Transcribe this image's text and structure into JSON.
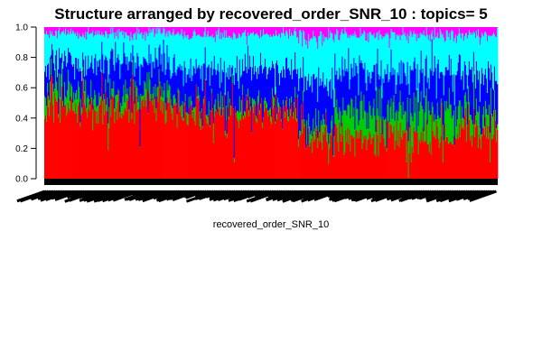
{
  "chart_data": {
    "type": "bar",
    "stacked": true,
    "title": "Structure arranged by recovered_order_SNR_10 : topics= 5",
    "xlabel": "recovered_order_SNR_10",
    "ylabel": "",
    "ylim": [
      0,
      1
    ],
    "y_ticks": [
      "0.0",
      "0.2",
      "0.4",
      "0.6",
      "0.8",
      "1.0"
    ],
    "grid": false,
    "legend": "none",
    "x_tick_labels": "dense overlapping sample labels (unreadable)",
    "segments": [
      {
        "name": "",
        "color": "#ff0000",
        "groups": [
          {
            "count": 70,
            "mean": 0.45,
            "sd": 0.1
          },
          {
            "count": 70,
            "mean": 0.46,
            "sd": 0.09
          },
          {
            "count": 80,
            "mean": 0.42,
            "sd": 0.09
          },
          {
            "count": 60,
            "mean": 0.42,
            "sd": 0.09
          },
          {
            "count": 40,
            "mean": 0.3,
            "sd": 0.12
          },
          {
            "count": 140,
            "mean": 0.26,
            "sd": 0.09
          },
          {
            "count": 40,
            "mean": 0.33,
            "sd": 0.1
          }
        ]
      },
      {
        "name": "",
        "color": "#00cd00",
        "groups": [
          {
            "count": 70,
            "mean": 0.1,
            "sd": 0.06
          },
          {
            "count": 70,
            "mean": 0.08,
            "sd": 0.05
          },
          {
            "count": 80,
            "mean": 0.05,
            "sd": 0.04
          },
          {
            "count": 60,
            "mean": 0.04,
            "sd": 0.03
          },
          {
            "count": 40,
            "mean": 0.07,
            "sd": 0.06
          },
          {
            "count": 140,
            "mean": 0.17,
            "sd": 0.08
          },
          {
            "count": 40,
            "mean": 0.1,
            "sd": 0.07
          }
        ]
      },
      {
        "name": "",
        "color": "#0000ff",
        "groups": [
          {
            "count": 70,
            "mean": 0.2,
            "sd": 0.07
          },
          {
            "count": 70,
            "mean": 0.2,
            "sd": 0.07
          },
          {
            "count": 80,
            "mean": 0.22,
            "sd": 0.07
          },
          {
            "count": 60,
            "mean": 0.24,
            "sd": 0.07
          },
          {
            "count": 40,
            "mean": 0.27,
            "sd": 0.08
          },
          {
            "count": 140,
            "mean": 0.25,
            "sd": 0.07
          },
          {
            "count": 40,
            "mean": 0.22,
            "sd": 0.07
          }
        ]
      },
      {
        "name": "",
        "color": "#00ffff",
        "groups": [
          {
            "count": 70,
            "mean": 0.18,
            "sd": 0.06
          },
          {
            "count": 70,
            "mean": 0.19,
            "sd": 0.06
          },
          {
            "count": 80,
            "mean": 0.23,
            "sd": 0.06
          },
          {
            "count": 60,
            "mean": 0.22,
            "sd": 0.06
          },
          {
            "count": 40,
            "mean": 0.27,
            "sd": 0.07
          },
          {
            "count": 140,
            "mean": 0.24,
            "sd": 0.07
          },
          {
            "count": 40,
            "mean": 0.27,
            "sd": 0.07
          }
        ]
      },
      {
        "name": "",
        "color": "#ff00ff",
        "groups": [
          {
            "count": 70,
            "mean": 0.04,
            "sd": 0.02
          },
          {
            "count": 70,
            "mean": 0.04,
            "sd": 0.02
          },
          {
            "count": 80,
            "mean": 0.05,
            "sd": 0.02
          },
          {
            "count": 60,
            "mean": 0.05,
            "sd": 0.02
          },
          {
            "count": 40,
            "mean": 0.06,
            "sd": 0.03
          },
          {
            "count": 140,
            "mean": 0.05,
            "sd": 0.02
          },
          {
            "count": 40,
            "mean": 0.05,
            "sd": 0.02
          }
        ]
      }
    ]
  }
}
